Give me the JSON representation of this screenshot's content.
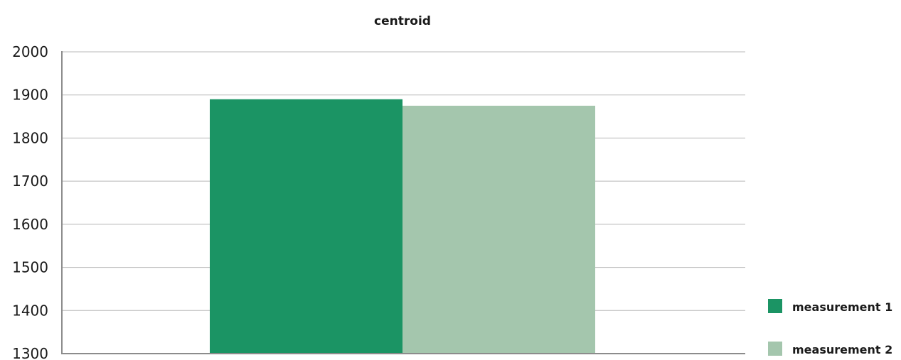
{
  "chart_data": {
    "type": "bar",
    "title": "centroid",
    "categories": [
      ""
    ],
    "series": [
      {
        "name": "measurement 1",
        "values": [
          1890
        ],
        "color": "#1b9464"
      },
      {
        "name": "measurement 2",
        "values": [
          1875
        ],
        "color": "#a4c6ad"
      }
    ],
    "ylim": [
      1300,
      2000
    ],
    "yticks": [
      1300,
      1400,
      1500,
      1600,
      1700,
      1800,
      1900,
      2000
    ],
    "xlabel": "",
    "ylabel": "",
    "grid": true,
    "legend_position": "bottom-right",
    "gridline_color": "#b8b8b8",
    "axis_color": "#8c8c8c"
  }
}
